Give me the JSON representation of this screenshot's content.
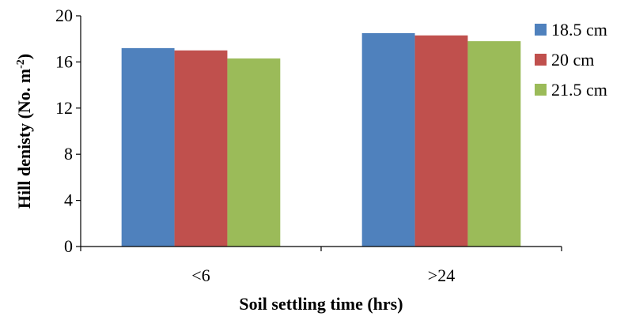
{
  "chart_data": {
    "type": "bar",
    "title": "",
    "xlabel": "Soil settling time (hrs)",
    "ylabel": "Hill denisty (No. m",
    "ylabel_superscript": "-2",
    "ylabel_suffix": ")",
    "categories": [
      "<6",
      ">24"
    ],
    "series": [
      {
        "name": "18.5 cm",
        "color": "#4F81BD",
        "values": [
          17.2,
          18.5
        ]
      },
      {
        "name": "20 cm",
        "color": "#C0504D",
        "values": [
          17.0,
          18.3
        ]
      },
      {
        "name": "21.5 cm",
        "color": "#9BBB59",
        "values": [
          16.3,
          17.8
        ]
      }
    ],
    "ylim": [
      0,
      20
    ],
    "yticks": [
      "0",
      "4",
      "8",
      "12",
      "16",
      "20"
    ],
    "grid": false,
    "legend_position": "right"
  }
}
